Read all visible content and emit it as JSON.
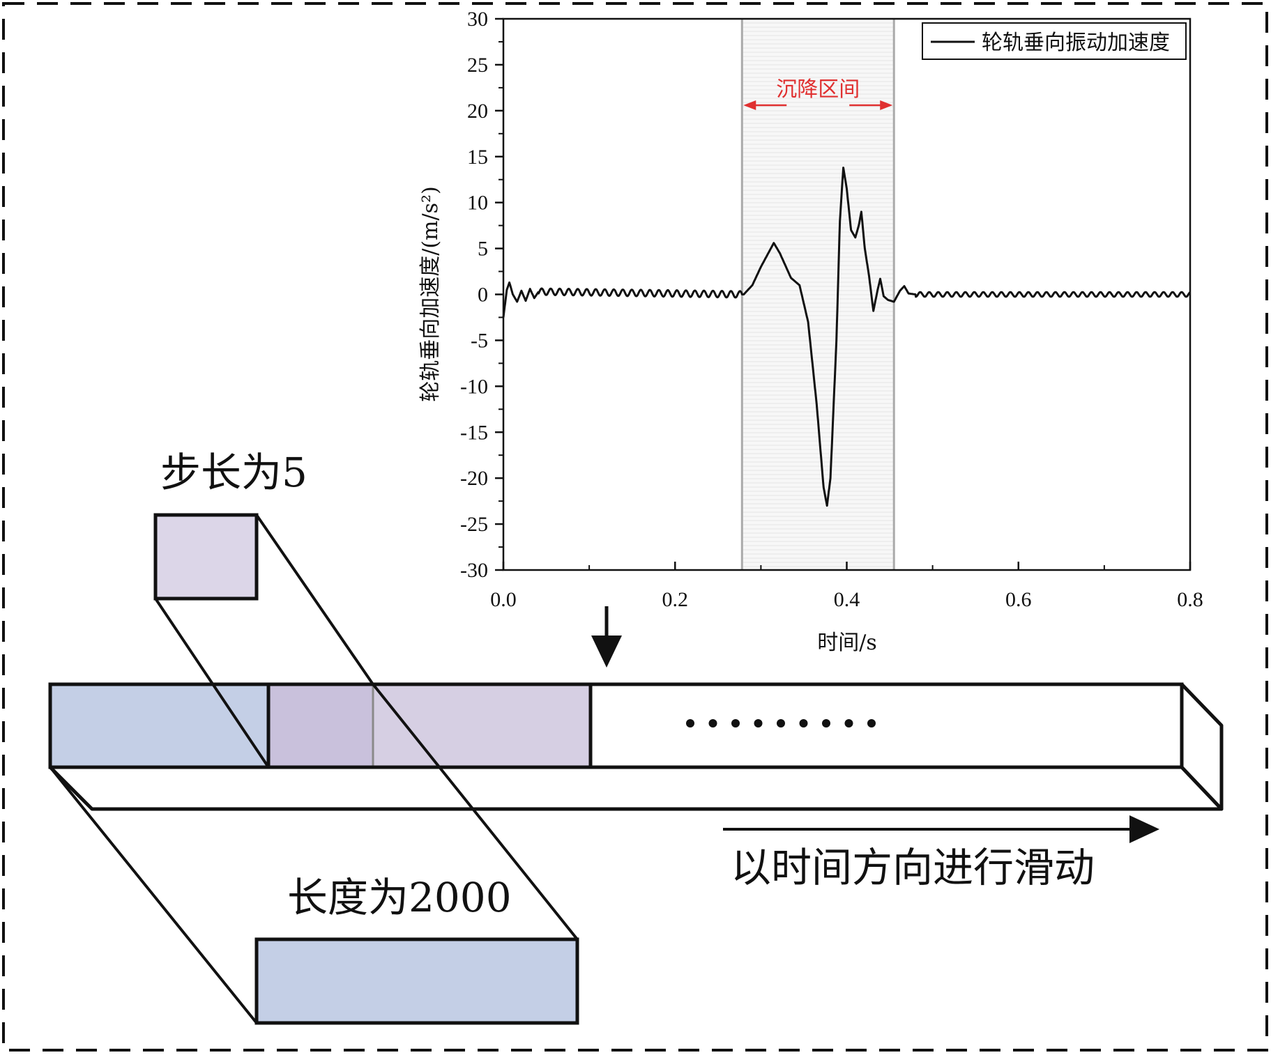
{
  "chart_data": {
    "type": "line",
    "title": "",
    "xlabel": "时间/s",
    "ylabel": "轮轨垂向加速度/(m/s²)",
    "xlim": [
      0.0,
      0.8
    ],
    "ylim": [
      -30,
      30
    ],
    "xticks": [
      "0.0",
      "0.2",
      "0.4",
      "0.6",
      "0.8"
    ],
    "yticks": [
      "30",
      "25",
      "20",
      "15",
      "10",
      "5",
      "0",
      "-5",
      "-10",
      "-15",
      "-20",
      "-25",
      "-30"
    ],
    "legend": "top-right",
    "series": [
      {
        "name": "轮轨垂向振动加速度",
        "color": "#111111",
        "points": [
          [
            0.0,
            -2.5
          ],
          [
            0.004,
            0.5
          ],
          [
            0.007,
            1.3
          ],
          [
            0.011,
            0.0
          ],
          [
            0.016,
            -0.8
          ],
          [
            0.021,
            0.4
          ],
          [
            0.026,
            -0.7
          ],
          [
            0.031,
            0.6
          ],
          [
            0.036,
            -0.4
          ],
          [
            0.041,
            0.3
          ],
          [
            0.28,
            0.0
          ],
          [
            0.29,
            1.0
          ],
          [
            0.3,
            3.0
          ],
          [
            0.315,
            5.6
          ],
          [
            0.322,
            4.5
          ],
          [
            0.335,
            1.8
          ],
          [
            0.345,
            1.0
          ],
          [
            0.355,
            -3.0
          ],
          [
            0.365,
            -12.0
          ],
          [
            0.373,
            -21.0
          ],
          [
            0.377,
            -23.0
          ],
          [
            0.381,
            -20.0
          ],
          [
            0.388,
            -5.0
          ],
          [
            0.392,
            8.0
          ],
          [
            0.396,
            13.8
          ],
          [
            0.4,
            11.5
          ],
          [
            0.405,
            7.0
          ],
          [
            0.41,
            6.2
          ],
          [
            0.414,
            7.5
          ],
          [
            0.417,
            9.0
          ],
          [
            0.421,
            5.0
          ],
          [
            0.426,
            2.0
          ],
          [
            0.431,
            -1.8
          ],
          [
            0.436,
            0.5
          ],
          [
            0.439,
            1.7
          ],
          [
            0.443,
            -0.2
          ],
          [
            0.448,
            -0.6
          ],
          [
            0.455,
            -0.8
          ],
          [
            0.462,
            0.4
          ],
          [
            0.467,
            0.9
          ],
          [
            0.472,
            0.1
          ],
          [
            0.48,
            0.0
          ],
          [
            0.8,
            0.0
          ]
        ]
      }
    ],
    "band": {
      "x0": 0.278,
      "x1": 0.455,
      "label": "沉降区间",
      "color": "#e03030"
    }
  },
  "diagram": {
    "step_label": "步长为5",
    "length_label": "长度为2000",
    "direction_label": "以时间方向进行滑动",
    "ellipsis": "·········",
    "fill_blue": "#c4cfe6",
    "fill_purple": "#d6cfe3"
  }
}
